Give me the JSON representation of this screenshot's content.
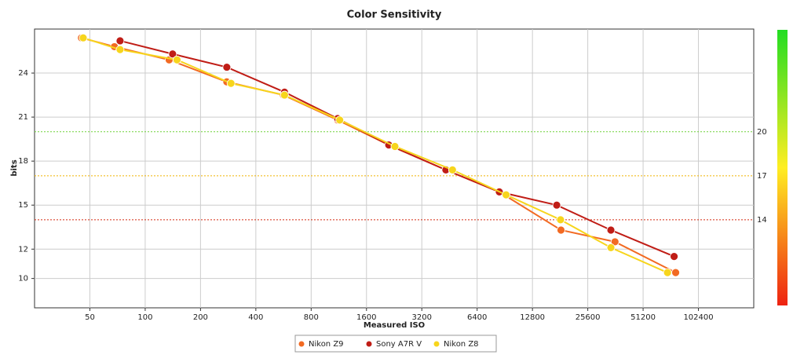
{
  "chart_data": {
    "type": "line",
    "title": "Color Sensitivity",
    "x_label": "Measured ISO",
    "y_label": "bits",
    "x_scale": "log",
    "xlim": [
      25,
      204800
    ],
    "xticks": [
      50,
      100,
      200,
      400,
      800,
      1600,
      3200,
      6400,
      12800,
      25600,
      51200,
      102400
    ],
    "ylim": [
      8,
      27
    ],
    "yticks": [
      10,
      12,
      15,
      18,
      21,
      24
    ],
    "grid": true,
    "legend": "bottom",
    "reference_lines": [
      {
        "value": 20,
        "color": "#6fd23a"
      },
      {
        "value": 17,
        "color": "#f0b400"
      },
      {
        "value": 14,
        "color": "#d42a10"
      }
    ],
    "series": [
      {
        "name": "Nikon Z9",
        "color": "#f26a22",
        "x": [
          45,
          68,
          135,
          278,
          565,
          1115,
          2115,
          4325,
          8450,
          18300,
          36000,
          77000
        ],
        "values": [
          26.4,
          25.8,
          24.9,
          23.4,
          22.5,
          20.8,
          19.1,
          17.4,
          15.9,
          13.3,
          12.5,
          10.4
        ]
      },
      {
        "name": "Sony A7R V",
        "color": "#c01d16",
        "x": [
          73,
          141,
          278,
          573,
          1115,
          2115,
          4325,
          8450,
          17350,
          34200,
          75500
        ],
        "values": [
          26.2,
          25.3,
          24.4,
          22.7,
          20.9,
          19.1,
          17.4,
          15.9,
          15.0,
          13.3,
          11.5
        ]
      },
      {
        "name": "Nikon Z8",
        "color": "#f7d51c",
        "x": [
          46,
          73,
          149,
          293,
          573,
          1144,
          2285,
          4700,
          9200,
          18200,
          34200,
          69500
        ],
        "values": [
          26.4,
          25.6,
          24.9,
          23.3,
          22.5,
          20.8,
          19.0,
          17.4,
          15.7,
          14.0,
          12.1,
          10.4
        ]
      }
    ]
  }
}
